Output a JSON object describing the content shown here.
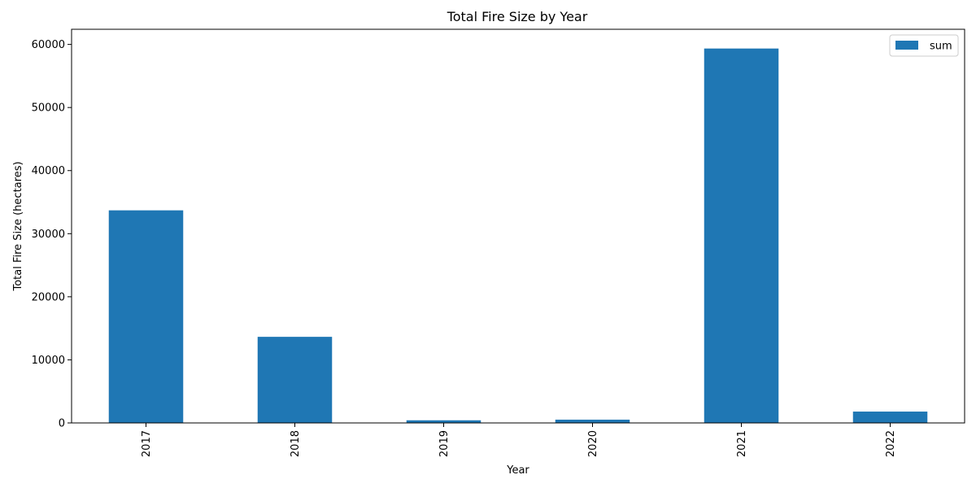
{
  "chart_data": {
    "type": "bar",
    "title": "Total Fire Size by Year",
    "xlabel": "Year",
    "ylabel": "Total Fire Size (hectares)",
    "categories": [
      "2017",
      "2018",
      "2019",
      "2020",
      "2021",
      "2022"
    ],
    "series": [
      {
        "name": "sum",
        "color": "#1f77b4",
        "values": [
          33700,
          13650,
          420,
          520,
          59350,
          1800
        ]
      }
    ],
    "ylim": [
      0,
      62400
    ],
    "yticks": [
      0,
      10000,
      20000,
      30000,
      40000,
      50000,
      60000
    ],
    "x_tick_rotation": "vertical",
    "grid": false,
    "legend": {
      "position": "top-right",
      "entries": [
        "sum"
      ]
    }
  }
}
